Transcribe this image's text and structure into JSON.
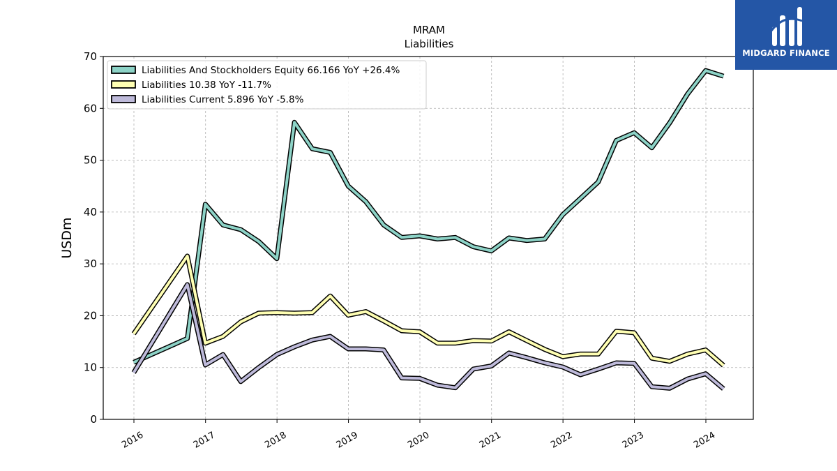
{
  "chart_data": {
    "type": "line",
    "title": "MRAM",
    "subtitle": "Liabilities",
    "xlabel": "",
    "ylabel": "USDm",
    "ylim": [
      0,
      70
    ],
    "yticks": [
      0,
      10,
      20,
      30,
      40,
      50,
      60,
      70
    ],
    "xticks": [
      "2016",
      "2017",
      "2018",
      "2019",
      "2020",
      "2021",
      "2022",
      "2023",
      "2024"
    ],
    "grid": true,
    "legend_position": "top-left",
    "series": [
      {
        "name": "Liabilities And Stockholders Equity",
        "legend_label": "Liabilities And Stockholders Equity  66.166 YoY +26.4%",
        "color": "#8dd3c7",
        "points": [
          [
            "2015-12-31",
            11.0
          ],
          [
            "2016-09-30",
            15.6
          ],
          [
            "2016-12-31",
            41.5
          ],
          [
            "2017-03-31",
            37.5
          ],
          [
            "2017-06-30",
            36.6
          ],
          [
            "2017-09-30",
            34.3
          ],
          [
            "2017-12-31",
            31.0
          ],
          [
            "2018-03-31",
            57.3
          ],
          [
            "2018-06-30",
            52.2
          ],
          [
            "2018-09-30",
            51.5
          ],
          [
            "2018-12-31",
            45.0
          ],
          [
            "2019-03-31",
            42.0
          ],
          [
            "2019-06-30",
            37.5
          ],
          [
            "2019-09-30",
            35.1
          ],
          [
            "2019-12-31",
            35.4
          ],
          [
            "2020-03-31",
            34.8
          ],
          [
            "2020-06-30",
            35.1
          ],
          [
            "2020-09-30",
            33.3
          ],
          [
            "2020-12-31",
            32.5
          ],
          [
            "2021-03-31",
            35.0
          ],
          [
            "2021-06-30",
            34.5
          ],
          [
            "2021-09-30",
            34.8
          ],
          [
            "2021-12-31",
            39.5
          ],
          [
            "2022-03-31",
            42.6
          ],
          [
            "2022-06-30",
            45.8
          ],
          [
            "2022-09-30",
            53.8
          ],
          [
            "2022-12-31",
            55.3
          ],
          [
            "2023-03-31",
            52.4
          ],
          [
            "2023-06-30",
            57.2
          ],
          [
            "2023-09-30",
            62.8
          ],
          [
            "2023-12-31",
            67.3
          ],
          [
            "2024-03-31",
            66.2
          ]
        ]
      },
      {
        "name": "Liabilities",
        "legend_label": "Liabilities  10.38 YoY -11.7%",
        "color": "#ffffb3",
        "points": [
          [
            "2015-12-31",
            16.5
          ],
          [
            "2016-09-30",
            31.5
          ],
          [
            "2016-12-31",
            14.7
          ],
          [
            "2017-03-31",
            16.0
          ],
          [
            "2017-06-30",
            18.8
          ],
          [
            "2017-09-30",
            20.5
          ],
          [
            "2017-12-31",
            20.6
          ],
          [
            "2018-03-31",
            20.5
          ],
          [
            "2018-06-30",
            20.6
          ],
          [
            "2018-09-30",
            23.8
          ],
          [
            "2018-12-31",
            20.1
          ],
          [
            "2019-03-31",
            20.8
          ],
          [
            "2019-06-30",
            19.0
          ],
          [
            "2019-09-30",
            17.1
          ],
          [
            "2019-12-31",
            16.9
          ],
          [
            "2020-03-31",
            14.7
          ],
          [
            "2020-06-30",
            14.7
          ],
          [
            "2020-09-30",
            15.2
          ],
          [
            "2020-12-31",
            15.1
          ],
          [
            "2021-03-31",
            16.9
          ],
          [
            "2021-06-30",
            15.2
          ],
          [
            "2021-09-30",
            13.5
          ],
          [
            "2021-12-31",
            12.1
          ],
          [
            "2022-03-31",
            12.6
          ],
          [
            "2022-06-30",
            12.6
          ],
          [
            "2022-09-30",
            17.0
          ],
          [
            "2022-12-31",
            16.7
          ],
          [
            "2023-03-31",
            11.8
          ],
          [
            "2023-06-30",
            11.2
          ],
          [
            "2023-09-30",
            12.6
          ],
          [
            "2023-12-31",
            13.4
          ],
          [
            "2024-03-31",
            10.4
          ]
        ]
      },
      {
        "name": "Liabilities Current",
        "legend_label": "Liabilities Current  5.896 YoY -5.8%",
        "color": "#bebada",
        "points": [
          [
            "2015-12-31",
            9.0
          ],
          [
            "2016-09-30",
            26.0
          ],
          [
            "2016-12-31",
            10.5
          ],
          [
            "2017-03-31",
            12.5
          ],
          [
            "2017-06-30",
            7.3
          ],
          [
            "2017-09-30",
            10.0
          ],
          [
            "2017-12-31",
            12.5
          ],
          [
            "2018-03-31",
            14.0
          ],
          [
            "2018-06-30",
            15.3
          ],
          [
            "2018-09-30",
            16.0
          ],
          [
            "2018-12-31",
            13.6
          ],
          [
            "2019-03-31",
            13.6
          ],
          [
            "2019-06-30",
            13.4
          ],
          [
            "2019-09-30",
            8.0
          ],
          [
            "2019-12-31",
            7.9
          ],
          [
            "2020-03-31",
            6.6
          ],
          [
            "2020-06-30",
            6.1
          ],
          [
            "2020-09-30",
            9.7
          ],
          [
            "2020-12-31",
            10.3
          ],
          [
            "2021-03-31",
            12.8
          ],
          [
            "2021-06-30",
            11.9
          ],
          [
            "2021-09-30",
            10.9
          ],
          [
            "2021-12-31",
            10.1
          ],
          [
            "2022-03-31",
            8.6
          ],
          [
            "2022-06-30",
            9.7
          ],
          [
            "2022-09-30",
            10.9
          ],
          [
            "2022-12-31",
            10.8
          ],
          [
            "2023-03-31",
            6.3
          ],
          [
            "2023-06-30",
            6.0
          ],
          [
            "2023-09-30",
            7.8
          ],
          [
            "2023-12-31",
            8.8
          ],
          [
            "2024-03-31",
            5.9
          ]
        ]
      }
    ]
  },
  "logo": {
    "text": "MIDGARD FINANCE"
  }
}
